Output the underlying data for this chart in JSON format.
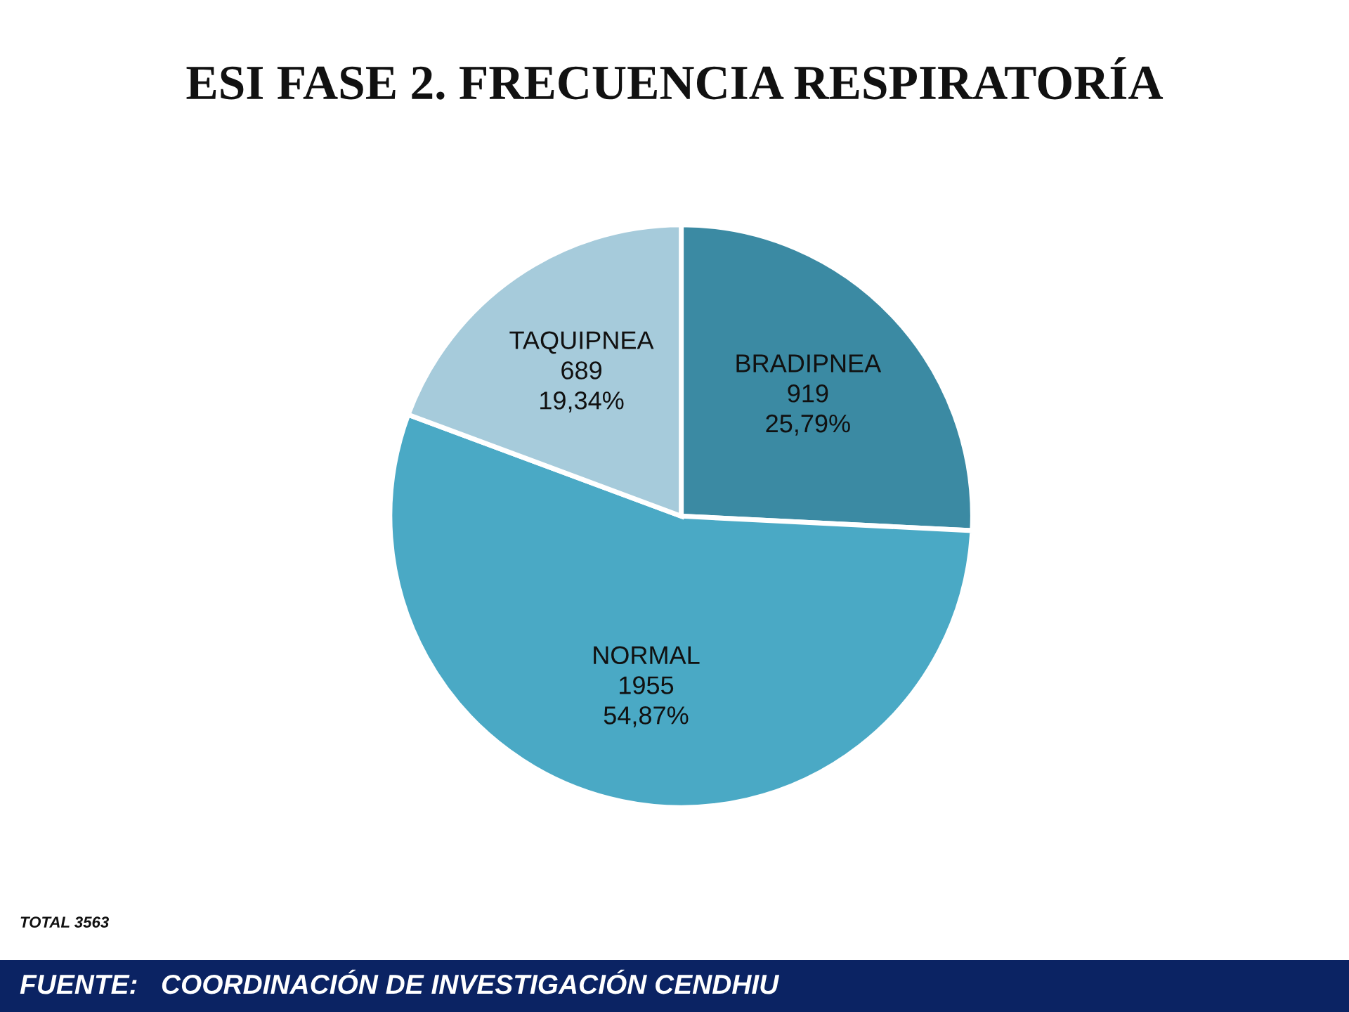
{
  "chart_data": {
    "type": "pie",
    "title": "ESI FASE 2. FRECUENCIA RESPIRATORÍA",
    "categories": [
      "BRADIPNEA",
      "NORMAL",
      "TAQUIPNEA"
    ],
    "values": [
      919,
      1955,
      689
    ],
    "value_labels": [
      "919\n25,79%",
      "1955\n54,87%",
      "689\n19,34%"
    ],
    "colors": [
      "#3b8aa3",
      "#4aa9c5",
      "#a6cbdb"
    ],
    "annotations": [
      "TOTAL 3563",
      "FUENTE:   COORDINACIÓN DE INVESTIGACIÓN CENDHIU"
    ]
  }
}
